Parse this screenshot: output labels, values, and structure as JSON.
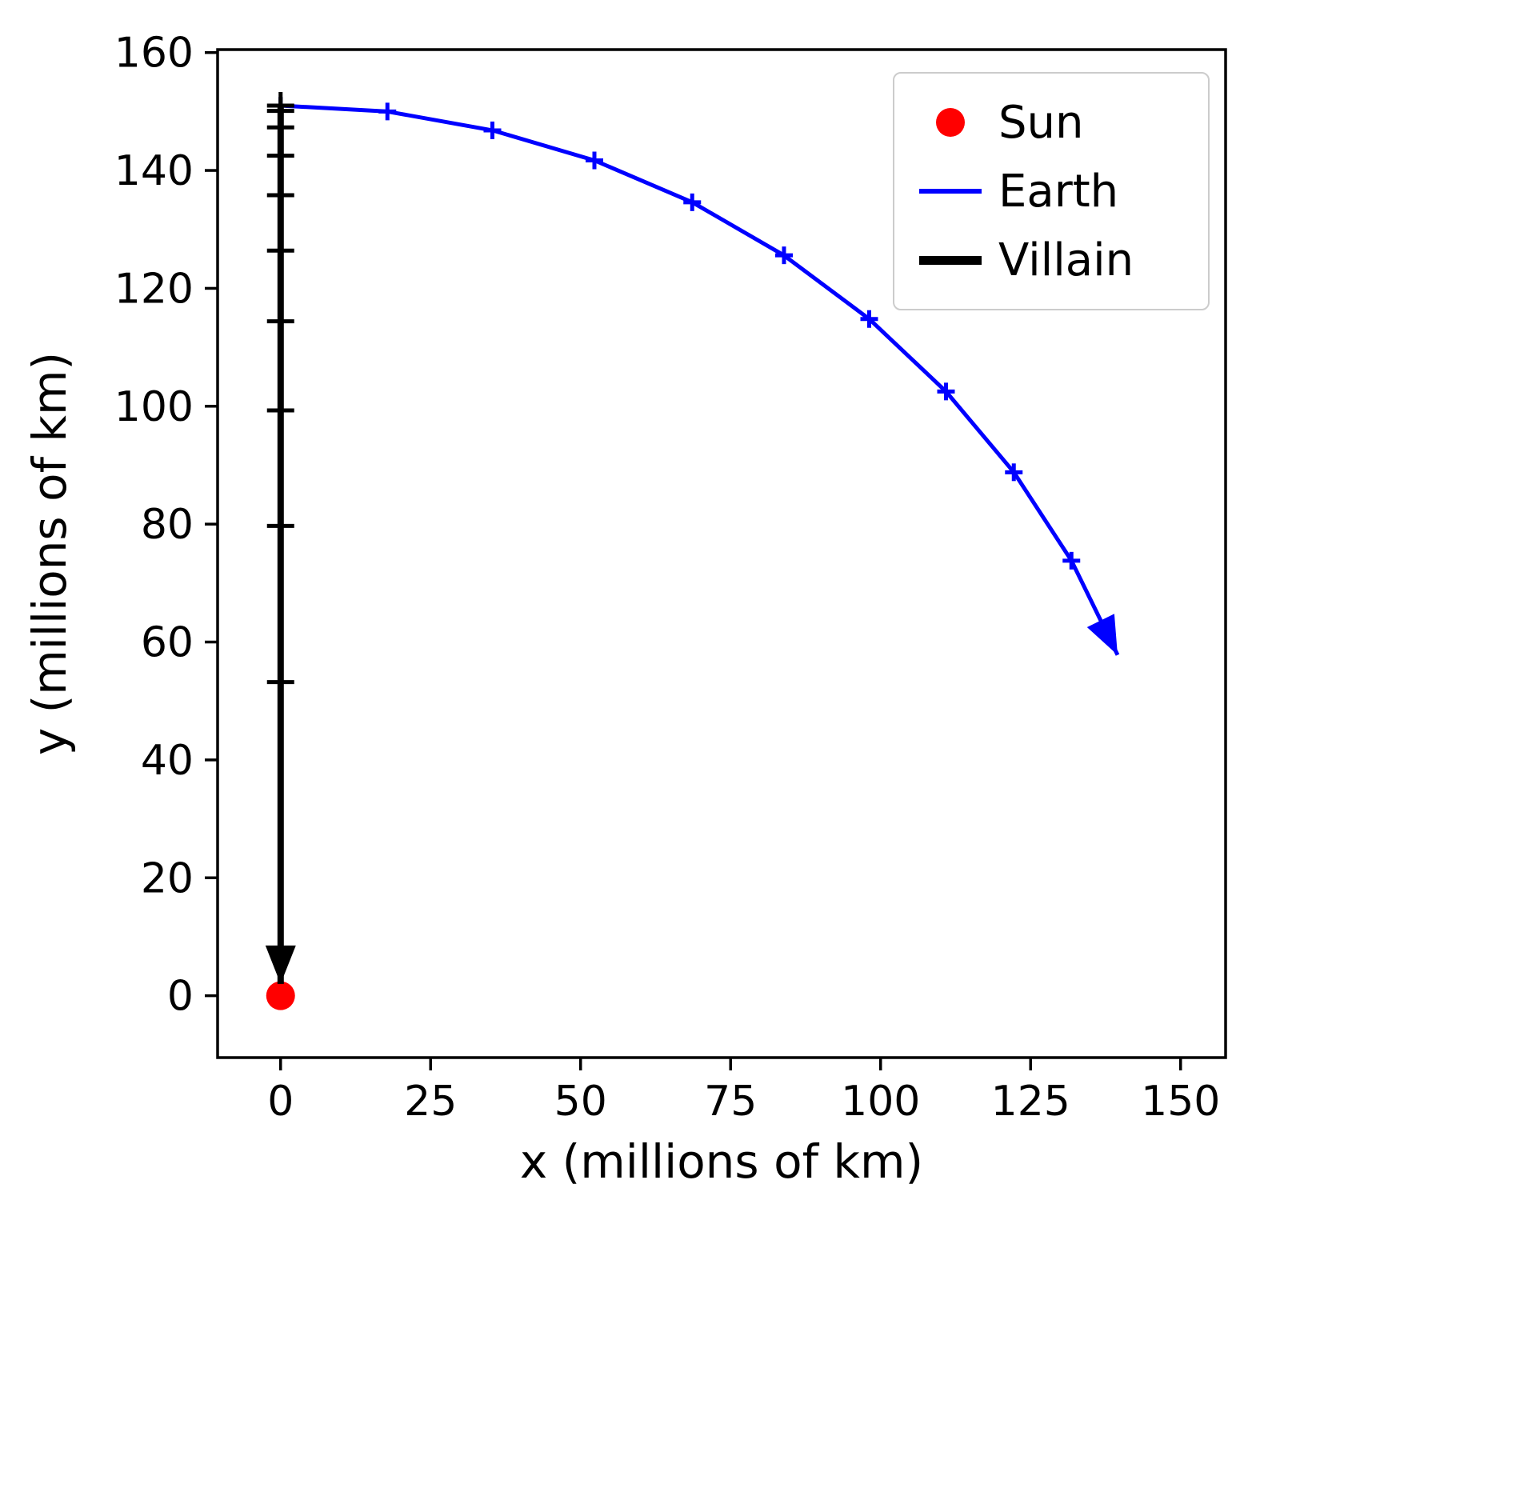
{
  "chart_data": {
    "type": "line",
    "title": "",
    "xlabel": "x (millions of km)",
    "ylabel": "y (millions of km)",
    "xlim": [
      -10.5,
      157.5
    ],
    "ylim": [
      -10.5,
      160.5
    ],
    "xticks": [
      0,
      25,
      50,
      75,
      100,
      125,
      150
    ],
    "yticks": [
      0,
      20,
      40,
      60,
      80,
      100,
      120,
      140,
      160
    ],
    "grid": false,
    "background": "#ffffff",
    "legend": {
      "position": "upper right",
      "entries": [
        {
          "label": "Sun",
          "type": "dot",
          "color": "#ff0000"
        },
        {
          "label": "Earth",
          "type": "line",
          "color": "#0000ff"
        },
        {
          "label": "Villain",
          "type": "line",
          "color": "#000000"
        }
      ]
    },
    "series": [
      {
        "name": "Sun",
        "type": "scatter",
        "color": "#ff0000",
        "marker_radius": 18,
        "points": [
          [
            0,
            0
          ]
        ]
      },
      {
        "name": "Earth",
        "type": "line",
        "color": "#0000ff",
        "line_width": 5,
        "marker": "plus",
        "arrow_end": true,
        "points": [
          [
            0,
            151
          ],
          [
            17.8,
            150.0
          ],
          [
            35.3,
            146.8
          ],
          [
            52.3,
            141.7
          ],
          [
            68.6,
            134.6
          ],
          [
            83.9,
            125.6
          ],
          [
            98.1,
            114.8
          ],
          [
            110.9,
            102.5
          ],
          [
            122.2,
            88.8
          ],
          [
            131.8,
            73.8
          ],
          [
            139.5,
            57.8
          ]
        ]
      },
      {
        "name": "Villain",
        "type": "line",
        "color": "#000000",
        "line_width": 8,
        "marker": "plus",
        "arrow_end": true,
        "points": [
          [
            0,
            151
          ],
          [
            0,
            150.1
          ],
          [
            0,
            147.3
          ],
          [
            0,
            142.5
          ],
          [
            0,
            135.8
          ],
          [
            0,
            126.4
          ],
          [
            0,
            114.4
          ],
          [
            0,
            99.3
          ],
          [
            0,
            79.7
          ],
          [
            0,
            53.2
          ],
          [
            0,
            2
          ]
        ]
      }
    ]
  }
}
